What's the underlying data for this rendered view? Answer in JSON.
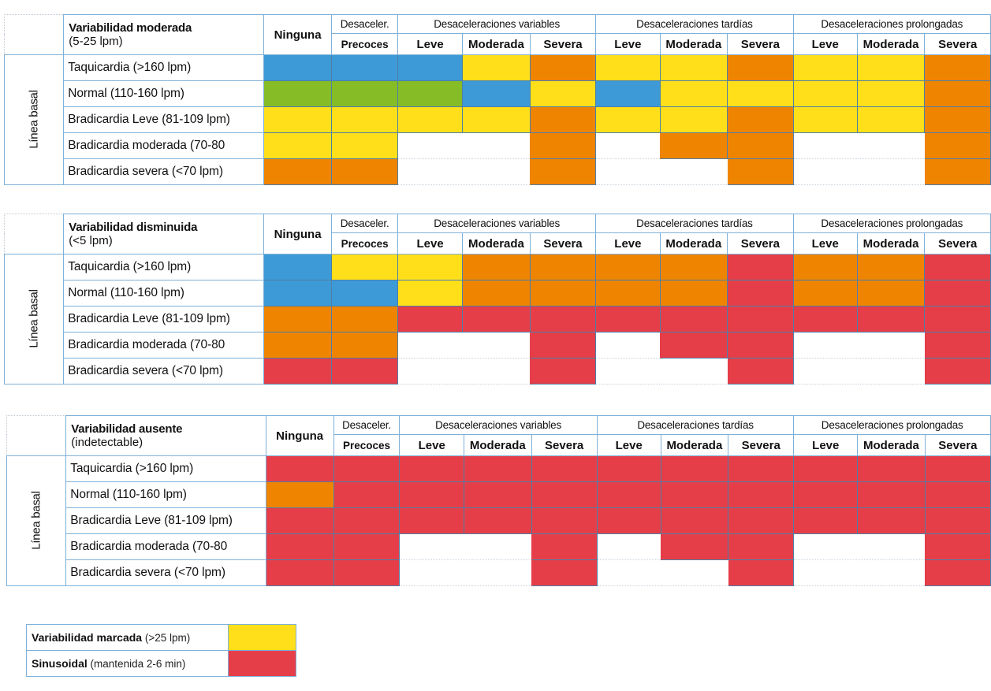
{
  "colors": {
    "blue": "#3d9ad6",
    "green": "#86bc25",
    "yellow": "#ffdf1a",
    "orange": "#ef8400",
    "red": "#e63e48",
    "none": ""
  },
  "headers": {
    "ninguna": "Ninguna",
    "desaceler": "Desaceler.",
    "precoces": "Precoces",
    "variables": "Desaceleraciones   variables",
    "tardias": "Desaceleraciones   tardías",
    "prolongadas": "Desaceleraciones   prolongadas",
    "leve": "Leve",
    "moderada": "Moderada",
    "severa": "Severa",
    "side_label": "Línea basal"
  },
  "row_labels": [
    "Taquicardia  (>160 lpm)",
    "Normal (110-160 lpm)",
    "Bradicardia Leve (81-109 lpm)",
    "Bradicardia moderada (70-80",
    "Bradicardia  severa (<70 lpm)"
  ],
  "tables": [
    {
      "title_line1": "Variabilidad moderada",
      "title_line2": "(5-25 lpm)",
      "grid": [
        [
          "blue",
          "blue",
          "blue",
          "yellow",
          "orange",
          "yellow",
          "yellow",
          "orange",
          "yellow",
          "yellow",
          "orange"
        ],
        [
          "green",
          "green",
          "green",
          "blue",
          "yellow",
          "blue",
          "yellow",
          "yellow",
          "yellow",
          "yellow",
          "orange"
        ],
        [
          "yellow",
          "yellow",
          "yellow",
          "yellow",
          "orange",
          "yellow",
          "yellow",
          "orange",
          "yellow",
          "yellow",
          "orange"
        ],
        [
          "yellow",
          "yellow",
          "none",
          "none",
          "orange",
          "none",
          "orange",
          "orange",
          "none",
          "none",
          "orange"
        ],
        [
          "orange",
          "orange",
          "none",
          "none",
          "orange",
          "none",
          "none",
          "orange",
          "none",
          "none",
          "orange"
        ]
      ]
    },
    {
      "title_line1": "Variabilidad disminuida",
      "title_line2": "(<5 lpm)",
      "grid": [
        [
          "blue",
          "yellow",
          "yellow",
          "orange",
          "orange",
          "orange",
          "orange",
          "red",
          "orange",
          "orange",
          "red"
        ],
        [
          "blue",
          "blue",
          "yellow",
          "orange",
          "orange",
          "orange",
          "orange",
          "red",
          "orange",
          "orange",
          "red"
        ],
        [
          "orange",
          "orange",
          "red",
          "red",
          "red",
          "red",
          "red",
          "red",
          "red",
          "red",
          "red"
        ],
        [
          "orange",
          "orange",
          "none",
          "none",
          "red",
          "none",
          "red",
          "red",
          "none",
          "none",
          "red"
        ],
        [
          "red",
          "red",
          "none",
          "none",
          "red",
          "none",
          "none",
          "red",
          "none",
          "none",
          "red"
        ]
      ]
    },
    {
      "title_line1": "Variabilidad ausente",
      "title_line2": "(indetectable)",
      "grid": [
        [
          "red",
          "red",
          "red",
          "red",
          "red",
          "red",
          "red",
          "red",
          "red",
          "red",
          "red"
        ],
        [
          "orange",
          "red",
          "red",
          "red",
          "red",
          "red",
          "red",
          "red",
          "red",
          "red",
          "red"
        ],
        [
          "red",
          "red",
          "red",
          "red",
          "red",
          "red",
          "red",
          "red",
          "red",
          "red",
          "red"
        ],
        [
          "red",
          "red",
          "none",
          "none",
          "red",
          "none",
          "red",
          "red",
          "none",
          "none",
          "red"
        ],
        [
          "red",
          "red",
          "none",
          "none",
          "red",
          "none",
          "none",
          "red",
          "none",
          "none",
          "red"
        ]
      ]
    }
  ],
  "legend": [
    {
      "bold": "Variabilidad marcada",
      "rest": " (>25 lpm)",
      "color": "yellow"
    },
    {
      "bold": "Sinusoidal",
      "rest": " (mantenida  2-6 min)",
      "color": "red"
    }
  ]
}
